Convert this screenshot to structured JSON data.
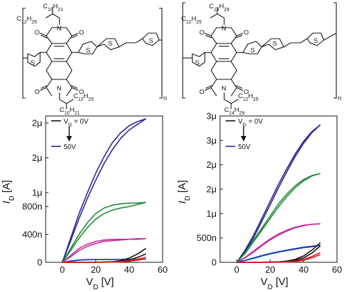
{
  "structures": {
    "left": {
      "chain_top_a": "C10H21",
      "chain_top_b": "C12H25",
      "chain_bottom_a": "C12H25",
      "chain_bottom_b": "C10H21",
      "n": "n"
    },
    "right": {
      "chain_top_a": "C14H29",
      "chain_top_b": "C12H25",
      "chain_bottom_a": "C12H25",
      "chain_bottom_b": "C14H29",
      "n": "n"
    },
    "atoms": {
      "N": "N",
      "O": "O",
      "S": "S"
    }
  },
  "chart_data": [
    {
      "type": "line",
      "xlabel": "V_D [V]",
      "ylabel": "I_D [A]",
      "xlim": [
        -10,
        60
      ],
      "ylim": [
        0,
        2.1
      ],
      "x_ticks": [
        0,
        20,
        40,
        60
      ],
      "x_tick_labels": [
        "0",
        "20",
        "40",
        "60"
      ],
      "y_ticks": [
        0,
        0.4,
        0.8,
        1.0,
        1.5,
        2.0
      ],
      "y_tick_labels": [
        "0",
        "400n",
        "800n",
        "1μ",
        "2μ",
        "2μ"
      ],
      "legend": {
        "top": "V_G = 0V",
        "bottom": "50V",
        "placement": "top-left"
      },
      "series": [
        {
          "color": "#2b2590",
          "x": [
            0,
            5,
            10,
            15,
            20,
            25,
            30,
            35,
            40,
            45,
            50
          ],
          "forward": [
            0,
            0.35,
            0.7,
            1.0,
            1.28,
            1.52,
            1.72,
            1.86,
            1.96,
            2.02,
            2.06
          ],
          "reverse": [
            0,
            0.31,
            0.63,
            0.92,
            1.18,
            1.42,
            1.62,
            1.78,
            1.9,
            1.98,
            2.06
          ]
        },
        {
          "color": "#1e8a3a",
          "x": [
            0,
            5,
            10,
            15,
            20,
            25,
            30,
            35,
            40,
            45,
            50
          ],
          "forward": [
            0,
            0.2,
            0.4,
            0.57,
            0.7,
            0.78,
            0.82,
            0.84,
            0.85,
            0.85,
            0.86
          ],
          "reverse": [
            0,
            0.17,
            0.35,
            0.5,
            0.62,
            0.7,
            0.75,
            0.78,
            0.8,
            0.83,
            0.86
          ]
        },
        {
          "color": "#c02e9e",
          "x": [
            0,
            5,
            10,
            15,
            20,
            25,
            30,
            35,
            40,
            45,
            50
          ],
          "forward": [
            0,
            0.1,
            0.2,
            0.26,
            0.3,
            0.32,
            0.33,
            0.33,
            0.33,
            0.34,
            0.34
          ],
          "reverse": [
            0,
            0.08,
            0.17,
            0.23,
            0.27,
            0.3,
            0.31,
            0.32,
            0.33,
            0.33,
            0.34
          ]
        },
        {
          "color": "#1f3fb0",
          "x": [
            0,
            5,
            10,
            15,
            20,
            25,
            30,
            35,
            40,
            45,
            50
          ],
          "forward": [
            0,
            0.02,
            0.035,
            0.04,
            0.04,
            0.042,
            0.042,
            0.043,
            0.043,
            0.044,
            0.044
          ],
          "reverse": [
            0,
            0.015,
            0.03,
            0.037,
            0.04,
            0.041,
            0.042,
            0.042,
            0.043,
            0.043,
            0.044
          ]
        },
        {
          "color": "#111111",
          "x": [
            0,
            5,
            10,
            15,
            20,
            25,
            30,
            35,
            40,
            45,
            50
          ],
          "forward": [
            0,
            0,
            0,
            0,
            0.002,
            0.005,
            0.01,
            0.025,
            0.06,
            0.12,
            0.2
          ],
          "reverse": [
            0,
            0,
            0,
            0,
            0.001,
            0.003,
            0.007,
            0.015,
            0.035,
            0.07,
            0.12
          ]
        },
        {
          "color": "#d62020",
          "x": [
            0,
            5,
            10,
            15,
            20,
            25,
            30,
            35,
            40,
            45,
            50
          ],
          "forward": [
            0,
            0,
            0,
            0,
            0,
            0.002,
            0.005,
            0.012,
            0.025,
            0.045,
            0.07
          ],
          "reverse": [
            0,
            0,
            0,
            0,
            0,
            0.001,
            0.003,
            0.007,
            0.015,
            0.03,
            0.05
          ]
        }
      ]
    },
    {
      "type": "line",
      "xlabel": "V_D [V]",
      "ylabel": "I_D [A]",
      "xlim": [
        -10,
        60
      ],
      "ylim": [
        0,
        3.0
      ],
      "x_ticks": [
        0,
        20,
        40,
        60
      ],
      "x_tick_labels": [
        "0",
        "20",
        "40",
        "60"
      ],
      "y_ticks": [
        0,
        0.5,
        1.0,
        1.5,
        2.0,
        2.5,
        3.0
      ],
      "y_tick_labels": [
        "0",
        "500n",
        "1μ",
        "2μ",
        "2μ",
        "3μ",
        "3μ"
      ],
      "legend": {
        "top": "V_G = 0V",
        "bottom": "50V",
        "placement": "top-left"
      },
      "series": [
        {
          "color": "#2b2590",
          "x": [
            0,
            5,
            10,
            15,
            20,
            25,
            30,
            35,
            40,
            45,
            50
          ],
          "forward": [
            0,
            0.25,
            0.55,
            0.9,
            1.25,
            1.6,
            1.92,
            2.22,
            2.48,
            2.68,
            2.82
          ],
          "reverse": [
            0,
            0.22,
            0.5,
            0.84,
            1.18,
            1.53,
            1.86,
            2.17,
            2.44,
            2.66,
            2.82
          ]
        },
        {
          "color": "#1e8a3a",
          "x": [
            0,
            5,
            10,
            15,
            20,
            25,
            30,
            35,
            40,
            45,
            50
          ],
          "forward": [
            0,
            0.2,
            0.45,
            0.7,
            0.95,
            1.2,
            1.4,
            1.57,
            1.7,
            1.78,
            1.82
          ],
          "reverse": [
            0,
            0.18,
            0.42,
            0.66,
            0.9,
            1.14,
            1.35,
            1.53,
            1.67,
            1.77,
            1.82
          ]
        },
        {
          "color": "#c02e9e",
          "x": [
            0,
            5,
            10,
            15,
            20,
            25,
            30,
            35,
            40,
            45,
            50
          ],
          "forward": [
            0,
            0.1,
            0.23,
            0.36,
            0.48,
            0.58,
            0.66,
            0.72,
            0.76,
            0.78,
            0.79
          ],
          "reverse": [
            0,
            0.09,
            0.21,
            0.34,
            0.46,
            0.56,
            0.64,
            0.71,
            0.75,
            0.78,
            0.79
          ]
        },
        {
          "color": "#1f3fb0",
          "x": [
            0,
            5,
            10,
            15,
            20,
            25,
            30,
            35,
            40,
            45,
            50
          ],
          "forward": [
            0,
            0.04,
            0.09,
            0.14,
            0.18,
            0.22,
            0.25,
            0.28,
            0.31,
            0.33,
            0.35
          ],
          "reverse": [
            0,
            0.035,
            0.08,
            0.13,
            0.17,
            0.21,
            0.24,
            0.27,
            0.3,
            0.32,
            0.35
          ]
        },
        {
          "color": "#111111",
          "x": [
            0,
            5,
            10,
            15,
            20,
            25,
            30,
            35,
            40,
            45,
            50
          ],
          "forward": [
            0,
            0,
            0,
            0.002,
            0.005,
            0.01,
            0.025,
            0.06,
            0.13,
            0.25,
            0.4
          ],
          "reverse": [
            0,
            0,
            0,
            0.001,
            0.003,
            0.007,
            0.015,
            0.04,
            0.09,
            0.19,
            0.34
          ]
        },
        {
          "color": "#d62020",
          "x": [
            0,
            5,
            10,
            15,
            20,
            25,
            30,
            35,
            40,
            45,
            50
          ],
          "forward": [
            0,
            0,
            0,
            0,
            0.001,
            0.004,
            0.01,
            0.025,
            0.06,
            0.12,
            0.2
          ],
          "reverse": [
            0,
            0,
            0,
            0,
            0,
            0.002,
            0.006,
            0.015,
            0.04,
            0.09,
            0.16
          ]
        }
      ]
    }
  ]
}
